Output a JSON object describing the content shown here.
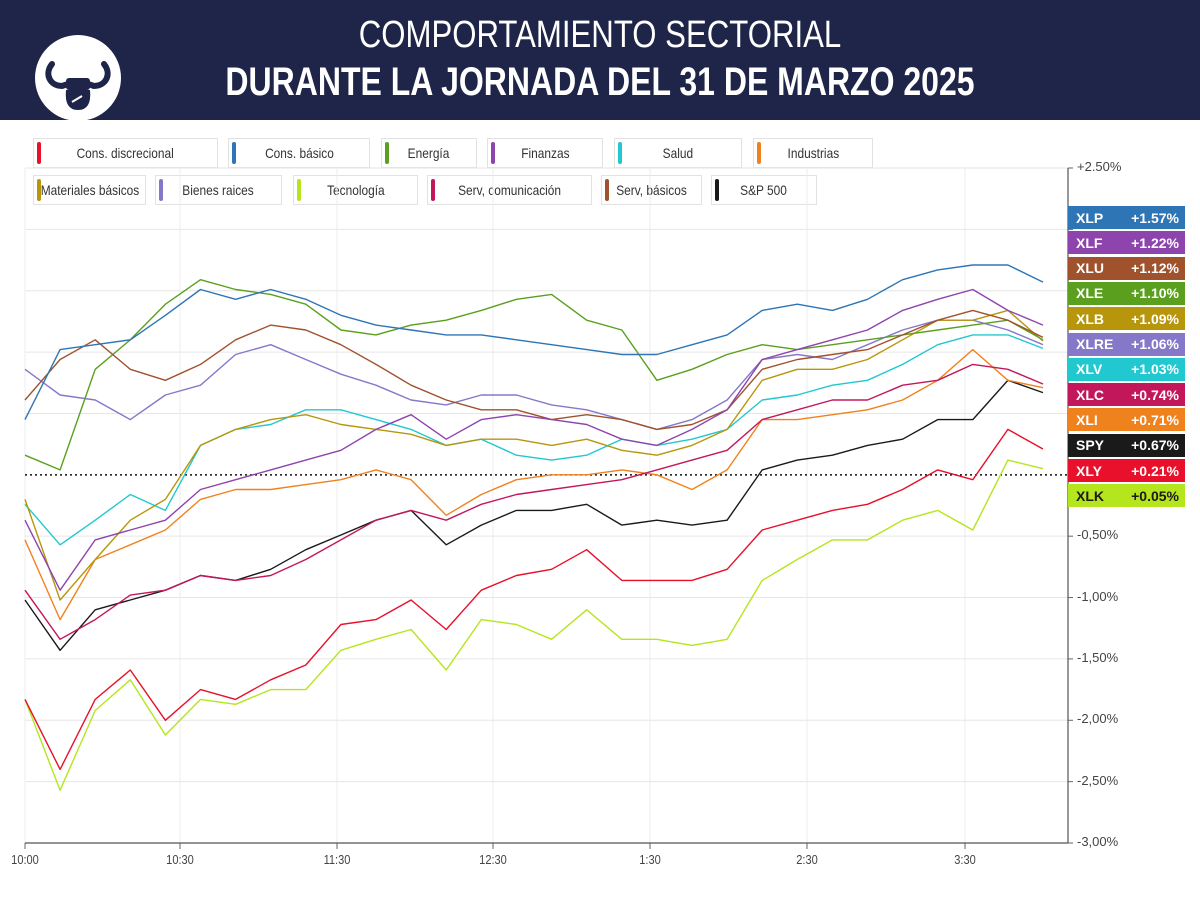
{
  "header": {
    "title_line1": "COMPORTAMIENTO SECTORIAL",
    "title_line2": "DURANTE LA JORNADA DEL 31 DE MARZO 2025",
    "logo_icon": "bull-fist-logo"
  },
  "legend": [
    {
      "label": "Cons. discrecional",
      "color": "#e8102a"
    },
    {
      "label": "Cons. básico",
      "color": "#2e75b6"
    },
    {
      "label": "Energía",
      "color": "#5aa01e"
    },
    {
      "label": "Finanzas",
      "color": "#8e44ad"
    },
    {
      "label": "Salud",
      "color": "#22c8d0"
    },
    {
      "label": "Industrias",
      "color": "#f0821e"
    },
    {
      "label": "Materiales básicos",
      "color": "#b8960c"
    },
    {
      "label": "Bienes raices",
      "color": "#8678c8"
    },
    {
      "label": "Tecnología",
      "color": "#b5e61d"
    },
    {
      "label": "Serv, comunicación",
      "color": "#c2185b"
    },
    {
      "label": "Serv, básicos",
      "color": "#a0522d"
    },
    {
      "label": "S&P 500",
      "color": "#1a1a1a"
    }
  ],
  "chart_data": {
    "type": "line",
    "title": "COMPORTAMIENTO SECTORIAL DURANTE LA JORNADA DEL 31 DE MARZO 2025",
    "x_tick_labels": [
      "10:00",
      "10:30",
      "11:30",
      "12:30",
      "1:30",
      "2:30",
      "3:30"
    ],
    "y_tick_labels": [
      "+2.50%",
      "-0,50%",
      "-1,00%",
      "-1,50%",
      "-2,00%",
      "-2,50%",
      "-3,00%"
    ],
    "ylim": [
      -3.0,
      2.5
    ],
    "y_unit": "%",
    "grid": true,
    "zero_line": "dotted",
    "legend_position": "top",
    "series": [
      {
        "ticker": "XLP",
        "final": "+1.57%",
        "color": "#2e75b6",
        "values": [
          0.45,
          1.02,
          1.06,
          1.1,
          1.3,
          1.51,
          1.43,
          1.51,
          1.43,
          1.3,
          1.22,
          1.18,
          1.14,
          1.14,
          1.1,
          1.06,
          1.02,
          0.98,
          0.98,
          1.06,
          1.14,
          1.34,
          1.39,
          1.34,
          1.43,
          1.59,
          1.67,
          1.71,
          1.71,
          1.57
        ]
      },
      {
        "ticker": "XLF",
        "final": "+1.22%",
        "color": "#8e44ad",
        "values": [
          -0.37,
          -0.94,
          -0.53,
          -0.45,
          -0.37,
          -0.12,
          -0.04,
          0.04,
          0.12,
          0.2,
          0.37,
          0.49,
          0.29,
          0.45,
          0.49,
          0.45,
          0.41,
          0.29,
          0.24,
          0.37,
          0.53,
          0.94,
          1.02,
          1.1,
          1.18,
          1.34,
          1.43,
          1.51,
          1.34,
          1.22
        ]
      },
      {
        "ticker": "XLU",
        "final": "+1.12%",
        "color": "#a0522d",
        "values": [
          0.61,
          0.94,
          1.1,
          0.86,
          0.77,
          0.9,
          1.1,
          1.22,
          1.18,
          1.06,
          0.9,
          0.73,
          0.61,
          0.53,
          0.53,
          0.45,
          0.49,
          0.45,
          0.37,
          0.41,
          0.53,
          0.86,
          0.94,
          0.98,
          1.02,
          1.14,
          1.26,
          1.34,
          1.26,
          1.12
        ]
      },
      {
        "ticker": "XLE",
        "final": "+1.10%",
        "color": "#5aa01e",
        "values": [
          0.16,
          0.04,
          0.86,
          1.1,
          1.39,
          1.59,
          1.51,
          1.47,
          1.39,
          1.18,
          1.14,
          1.22,
          1.26,
          1.34,
          1.43,
          1.47,
          1.26,
          1.18,
          0.77,
          0.86,
          0.98,
          1.06,
          1.02,
          1.06,
          1.1,
          1.14,
          1.18,
          1.22,
          1.26,
          1.1
        ]
      },
      {
        "ticker": "XLB",
        "final": "+1.09%",
        "color": "#b8960c",
        "values": [
          -0.2,
          -1.02,
          -0.69,
          -0.37,
          -0.2,
          0.24,
          0.37,
          0.45,
          0.49,
          0.41,
          0.37,
          0.33,
          0.24,
          0.29,
          0.29,
          0.24,
          0.29,
          0.2,
          0.16,
          0.24,
          0.37,
          0.77,
          0.86,
          0.86,
          0.94,
          1.1,
          1.26,
          1.26,
          1.34,
          1.09
        ]
      },
      {
        "ticker": "XLRE",
        "final": "+1.06%",
        "color": "#8678c8",
        "values": [
          0.86,
          0.65,
          0.61,
          0.45,
          0.65,
          0.73,
          0.98,
          1.06,
          0.94,
          0.82,
          0.73,
          0.61,
          0.57,
          0.65,
          0.65,
          0.57,
          0.53,
          0.45,
          0.37,
          0.45,
          0.61,
          0.94,
          0.98,
          0.94,
          1.06,
          1.18,
          1.26,
          1.26,
          1.18,
          1.06
        ]
      },
      {
        "ticker": "XLV",
        "final": "+1.03%",
        "color": "#22c8d0",
        "values": [
          -0.24,
          -0.57,
          -0.37,
          -0.16,
          -0.29,
          0.24,
          0.37,
          0.41,
          0.53,
          0.53,
          0.45,
          0.37,
          0.24,
          0.29,
          0.16,
          0.12,
          0.16,
          0.29,
          0.24,
          0.29,
          0.37,
          0.61,
          0.65,
          0.73,
          0.77,
          0.9,
          1.06,
          1.14,
          1.14,
          1.03
        ]
      },
      {
        "ticker": "XLC",
        "final": "+0.74%",
        "color": "#c2185b",
        "values": [
          -0.94,
          -1.34,
          -1.18,
          -0.98,
          -0.94,
          -0.82,
          -0.86,
          -0.82,
          -0.69,
          -0.53,
          -0.37,
          -0.29,
          -0.37,
          -0.24,
          -0.16,
          -0.12,
          -0.08,
          -0.04,
          0.04,
          0.12,
          0.2,
          0.45,
          0.53,
          0.61,
          0.61,
          0.73,
          0.77,
          0.9,
          0.86,
          0.74
        ]
      },
      {
        "ticker": "XLI",
        "final": "+0.71%",
        "color": "#f0821e",
        "values": [
          -0.53,
          -1.18,
          -0.69,
          -0.57,
          -0.45,
          -0.2,
          -0.12,
          -0.12,
          -0.08,
          -0.04,
          0.04,
          -0.04,
          -0.33,
          -0.16,
          -0.04,
          0.0,
          0.0,
          0.04,
          0.0,
          -0.12,
          0.04,
          0.45,
          0.45,
          0.49,
          0.53,
          0.61,
          0.77,
          1.02,
          0.77,
          0.71
        ]
      },
      {
        "ticker": "SPY",
        "final": "+0.67%",
        "color": "#1a1a1a",
        "values": [
          -1.02,
          -1.43,
          -1.1,
          -1.02,
          -0.94,
          -0.82,
          -0.86,
          -0.77,
          -0.61,
          -0.49,
          -0.37,
          -0.29,
          -0.57,
          -0.41,
          -0.29,
          -0.29,
          -0.24,
          -0.41,
          -0.37,
          -0.41,
          -0.37,
          0.04,
          0.12,
          0.16,
          0.24,
          0.29,
          0.45,
          0.45,
          0.77,
          0.67
        ]
      },
      {
        "ticker": "XLY",
        "final": "+0.21%",
        "color": "#e8102a",
        "values": [
          -1.83,
          -2.4,
          -1.83,
          -1.59,
          -2.0,
          -1.75,
          -1.83,
          -1.67,
          -1.55,
          -1.22,
          -1.18,
          -1.02,
          -1.26,
          -0.94,
          -0.82,
          -0.77,
          -0.61,
          -0.86,
          -0.86,
          -0.86,
          -0.77,
          -0.45,
          -0.37,
          -0.29,
          -0.24,
          -0.12,
          0.04,
          -0.04,
          0.37,
          0.21
        ]
      },
      {
        "ticker": "XLK",
        "final": "+0.05%",
        "color": "#b5e61d",
        "label_text_color": "#1a1a1a",
        "values": [
          -1.83,
          -2.57,
          -1.92,
          -1.67,
          -2.12,
          -1.83,
          -1.87,
          -1.75,
          -1.75,
          -1.43,
          -1.34,
          -1.26,
          -1.59,
          -1.18,
          -1.22,
          -1.34,
          -1.1,
          -1.34,
          -1.34,
          -1.39,
          -1.34,
          -0.86,
          -0.69,
          -0.53,
          -0.53,
          -0.37,
          -0.29,
          -0.45,
          0.12,
          0.05
        ]
      }
    ]
  }
}
